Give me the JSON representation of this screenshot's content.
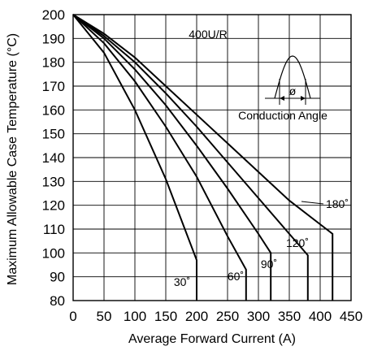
{
  "chart_data": {
    "type": "line",
    "title": "400U/R",
    "xlabel": "Average Forward Current (A)",
    "ylabel": "Maximum Allowable Case Temperature (°C)",
    "xlim": [
      0,
      450
    ],
    "ylim": [
      80,
      200
    ],
    "x_ticks": [
      "0",
      "50",
      "100",
      "150",
      "200",
      "250",
      "300",
      "350",
      "400",
      "450"
    ],
    "y_ticks": [
      "80",
      "90",
      "100",
      "110",
      "120",
      "130",
      "140",
      "150",
      "160",
      "170",
      "180",
      "190",
      "200"
    ],
    "grid": true,
    "inset_label": "Conduction Angle",
    "inset_symbol": "ø",
    "series": [
      {
        "name": "30˚",
        "x": [
          0,
          50,
          100,
          150,
          200,
          200
        ],
        "y": [
          200,
          184,
          160,
          131,
          97,
          80
        ]
      },
      {
        "name": "60˚",
        "x": [
          0,
          50,
          100,
          150,
          200,
          250,
          280,
          280
        ],
        "y": [
          200,
          188,
          172,
          153,
          132,
          107,
          93,
          80
        ]
      },
      {
        "name": "90˚",
        "x": [
          0,
          50,
          100,
          150,
          200,
          250,
          300,
          320,
          320
        ],
        "y": [
          200,
          190,
          177,
          162,
          145,
          127,
          108,
          100,
          80
        ]
      },
      {
        "name": "120˚",
        "x": [
          0,
          50,
          100,
          150,
          200,
          250,
          300,
          350,
          380,
          380
        ],
        "y": [
          200,
          191,
          180,
          167,
          153,
          138,
          123,
          108,
          99,
          80
        ]
      },
      {
        "name": "180˚",
        "x": [
          0,
          50,
          100,
          150,
          200,
          250,
          300,
          350,
          400,
          420,
          420
        ],
        "y": [
          200,
          192,
          182,
          170,
          158,
          146,
          134,
          122,
          112,
          108,
          80
        ]
      }
    ]
  }
}
